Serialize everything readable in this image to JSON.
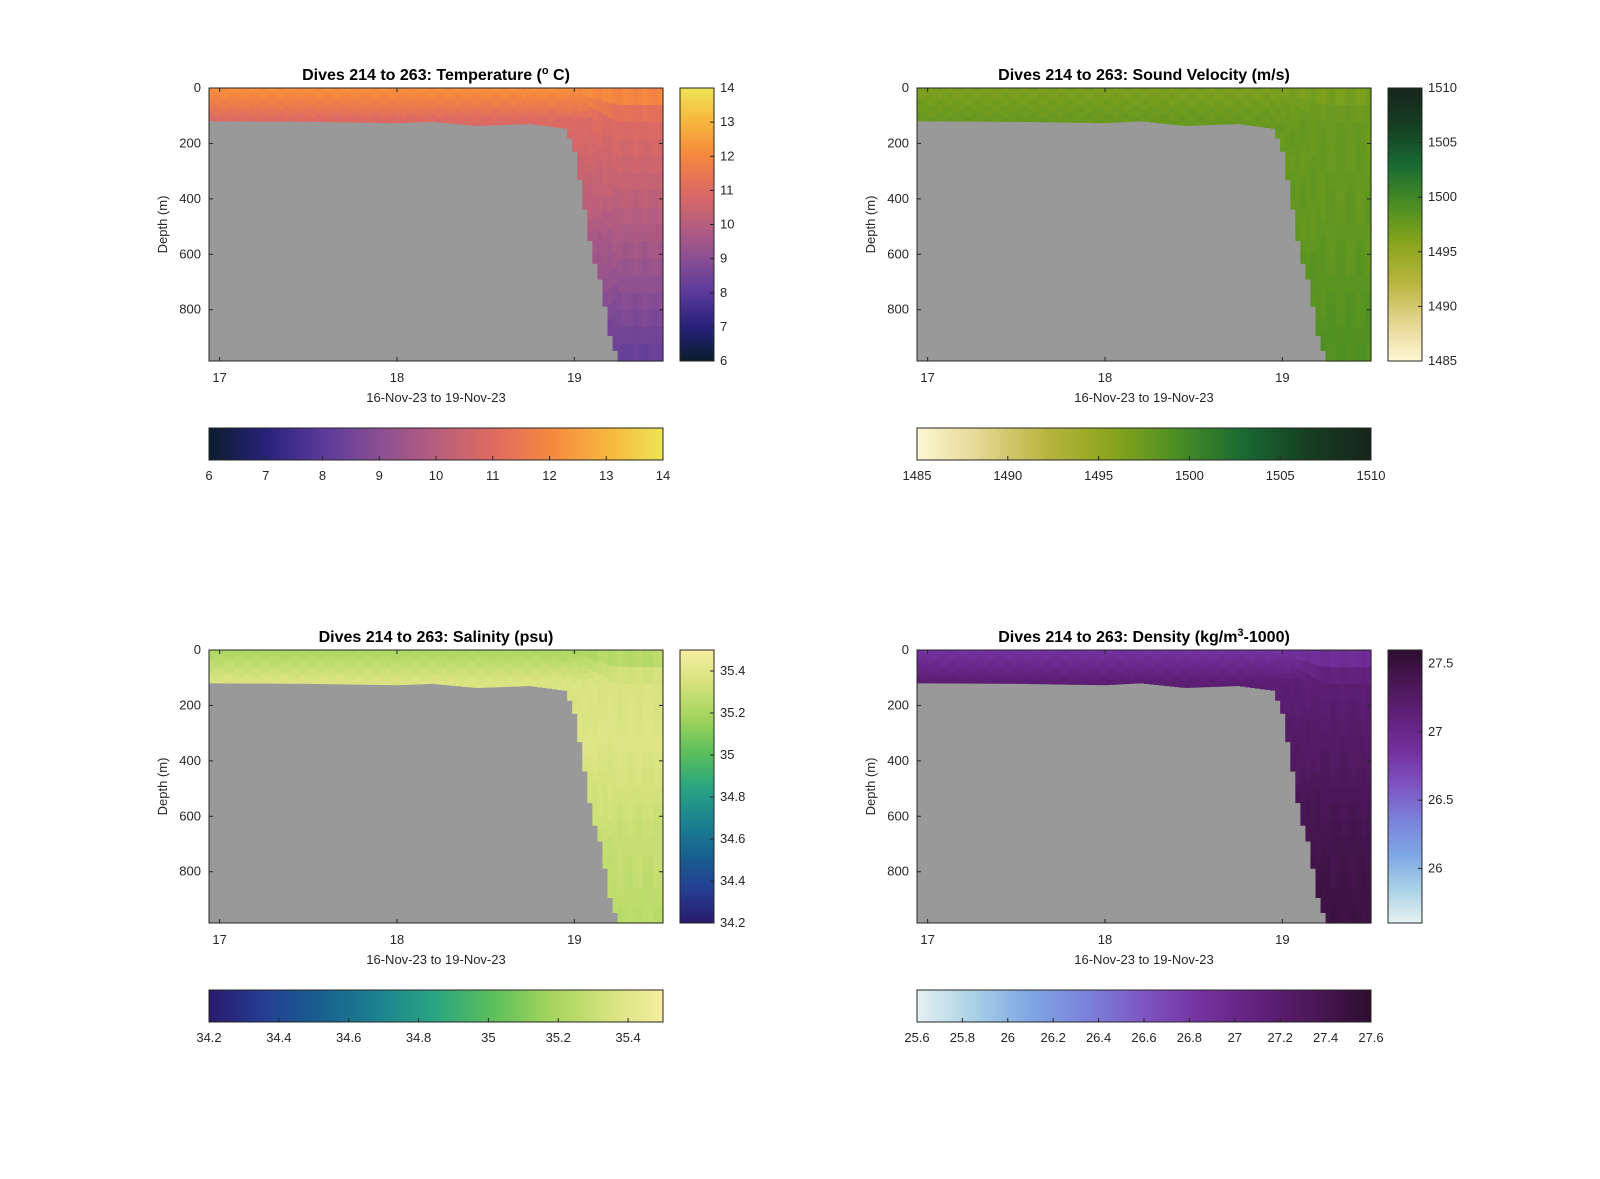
{
  "chart_data": [
    {
      "type": "heatmap",
      "title": "Dives 214 to 263: Temperature (° C)",
      "title_parts": [
        "Dives 214 to 263: Temperature (",
        "o",
        " C)"
      ],
      "xlabel": "16-Nov-23 to 19-Nov-23",
      "ylabel": "Depth (m)",
      "x_ticks": [
        "17",
        "18",
        "19"
      ],
      "y_ticks": [
        "0",
        "200",
        "400",
        "600",
        "800"
      ],
      "xlim": [
        16.94,
        19.5
      ],
      "ylim": [
        985,
        0
      ],
      "colorbar_ticks": [
        "6",
        "7",
        "8",
        "9",
        "10",
        "11",
        "12",
        "13",
        "14"
      ],
      "colorbar_range": [
        6,
        14
      ],
      "h_colorbar_ticks": [
        "6",
        "7",
        "8",
        "9",
        "10",
        "11",
        "12",
        "13",
        "14"
      ],
      "colormap": [
        "#0a1d2c",
        "#28217a",
        "#5a3a9a",
        "#8a4f93",
        "#b75e7d",
        "#de6b62",
        "#f5873e",
        "#f7b53e",
        "#eee556"
      ],
      "surface_value": 12.2,
      "deep_values": [
        11.3,
        10.4,
        9.3,
        8.2
      ],
      "nodata_color": "#999999",
      "bottom_profile": [
        [
          16.94,
          118
        ],
        [
          17.5,
          120
        ],
        [
          18.0,
          125
        ],
        [
          18.2,
          120
        ],
        [
          18.45,
          135
        ],
        [
          18.75,
          128
        ],
        [
          18.95,
          145
        ],
        [
          19.0,
          220
        ],
        [
          19.05,
          400
        ],
        [
          19.1,
          600
        ],
        [
          19.15,
          700
        ],
        [
          19.2,
          890
        ],
        [
          19.25,
          985
        ],
        [
          19.5,
          985
        ]
      ]
    },
    {
      "type": "heatmap",
      "title": "Dives 214 to 263: Sound Velocity (m/s)",
      "title_parts": [
        "Dives 214 to 263: Sound Velocity (m/s)",
        "",
        ""
      ],
      "xlabel": "16-Nov-23 to 19-Nov-23",
      "ylabel": "Depth (m)",
      "x_ticks": [
        "17",
        "18",
        "19"
      ],
      "y_ticks": [
        "0",
        "200",
        "400",
        "600",
        "800"
      ],
      "xlim": [
        16.94,
        19.5
      ],
      "ylim": [
        985,
        0
      ],
      "colorbar_ticks": [
        "1485",
        "1490",
        "1495",
        "1500",
        "1505",
        "1510"
      ],
      "colorbar_range": [
        1485,
        1510
      ],
      "h_colorbar_ticks": [
        "1485",
        "1490",
        "1495",
        "1500",
        "1505",
        "1510"
      ],
      "colormap": [
        "#fdf7d4",
        "#e4d58f",
        "#b8b53e",
        "#8aa51c",
        "#4b8e23",
        "#1a6b33",
        "#163f22",
        "#17241c"
      ],
      "surface_value": 1496.5,
      "deep_values": [
        1497.5,
        1497.8,
        1498.3,
        1499.0
      ],
      "nodata_color": "#999999",
      "bottom_profile": [
        [
          16.94,
          118
        ],
        [
          17.5,
          120
        ],
        [
          18.0,
          125
        ],
        [
          18.2,
          118
        ],
        [
          18.45,
          135
        ],
        [
          18.75,
          128
        ],
        [
          18.95,
          145
        ],
        [
          19.0,
          220
        ],
        [
          19.05,
          400
        ],
        [
          19.1,
          600
        ],
        [
          19.15,
          700
        ],
        [
          19.2,
          890
        ],
        [
          19.25,
          985
        ],
        [
          19.5,
          985
        ]
      ]
    },
    {
      "type": "heatmap",
      "title": "Dives 214 to 263: Salinity (psu)",
      "title_parts": [
        "Dives 214 to 263: Salinity (psu)",
        "",
        ""
      ],
      "xlabel": "16-Nov-23 to 19-Nov-23",
      "ylabel": "Depth (m)",
      "x_ticks": [
        "17",
        "18",
        "19"
      ],
      "y_ticks": [
        "0",
        "200",
        "400",
        "600",
        "800"
      ],
      "xlim": [
        16.94,
        19.5
      ],
      "ylim": [
        985,
        0
      ],
      "colorbar_ticks": [
        "35.4",
        "35.2",
        "35",
        "34.8",
        "34.6",
        "34.4",
        "34.2"
      ],
      "colorbar_range": [
        34.2,
        35.5
      ],
      "h_colorbar_ticks": [
        "34.2",
        "34.4",
        "34.6",
        "34.8",
        "35",
        "35.2",
        "35.4"
      ],
      "colormap": [
        "#2a1a6e",
        "#253f93",
        "#17618f",
        "#1c8390",
        "#2aa57f",
        "#5cbf5b",
        "#a3d45d",
        "#d4e27c",
        "#f6eea0"
      ],
      "surface_value": 35.2,
      "deep_values": [
        35.35,
        35.38,
        35.3,
        35.25
      ],
      "nodata_color": "#999999",
      "bottom_profile": [
        [
          16.94,
          118
        ],
        [
          17.5,
          120
        ],
        [
          18.0,
          125
        ],
        [
          18.2,
          120
        ],
        [
          18.45,
          135
        ],
        [
          18.75,
          128
        ],
        [
          18.95,
          145
        ],
        [
          19.0,
          220
        ],
        [
          19.05,
          400
        ],
        [
          19.1,
          600
        ],
        [
          19.15,
          700
        ],
        [
          19.2,
          890
        ],
        [
          19.25,
          985
        ],
        [
          19.5,
          985
        ]
      ]
    },
    {
      "type": "heatmap",
      "title": "Dives 214 to 263: Density (kg/m³-1000)",
      "title_parts": [
        "Dives 214 to 263: Density (kg/m",
        "3",
        "-1000)"
      ],
      "xlabel": "16-Nov-23 to 19-Nov-23",
      "ylabel": "Depth (m)",
      "x_ticks": [
        "17",
        "18",
        "19"
      ],
      "y_ticks": [
        "0",
        "200",
        "400",
        "600",
        "800"
      ],
      "xlim": [
        16.94,
        19.5
      ],
      "ylim": [
        985,
        0
      ],
      "colorbar_ticks": [
        "27.5",
        "27",
        "26.5",
        "26"
      ],
      "colorbar_range": [
        25.6,
        27.6
      ],
      "h_colorbar_ticks": [
        "25.6",
        "25.8",
        "26",
        "26.2",
        "26.4",
        "26.6",
        "26.8",
        "27",
        "27.2",
        "27.4",
        "27.6"
      ],
      "colormap": [
        "#e6f1f2",
        "#a9d1e6",
        "#7ea6e4",
        "#7b82d9",
        "#7e55c2",
        "#7432a0",
        "#61217c",
        "#4b1757",
        "#2c0e2e"
      ],
      "surface_value": 26.85,
      "deep_values": [
        27.1,
        27.25,
        27.4,
        27.48
      ],
      "nodata_color": "#999999",
      "bottom_profile": [
        [
          16.94,
          118
        ],
        [
          17.5,
          120
        ],
        [
          18.0,
          125
        ],
        [
          18.2,
          118
        ],
        [
          18.45,
          135
        ],
        [
          18.75,
          128
        ],
        [
          18.95,
          145
        ],
        [
          19.0,
          220
        ],
        [
          19.05,
          400
        ],
        [
          19.1,
          600
        ],
        [
          19.15,
          700
        ],
        [
          19.2,
          890
        ],
        [
          19.25,
          985
        ],
        [
          19.5,
          985
        ]
      ]
    }
  ]
}
